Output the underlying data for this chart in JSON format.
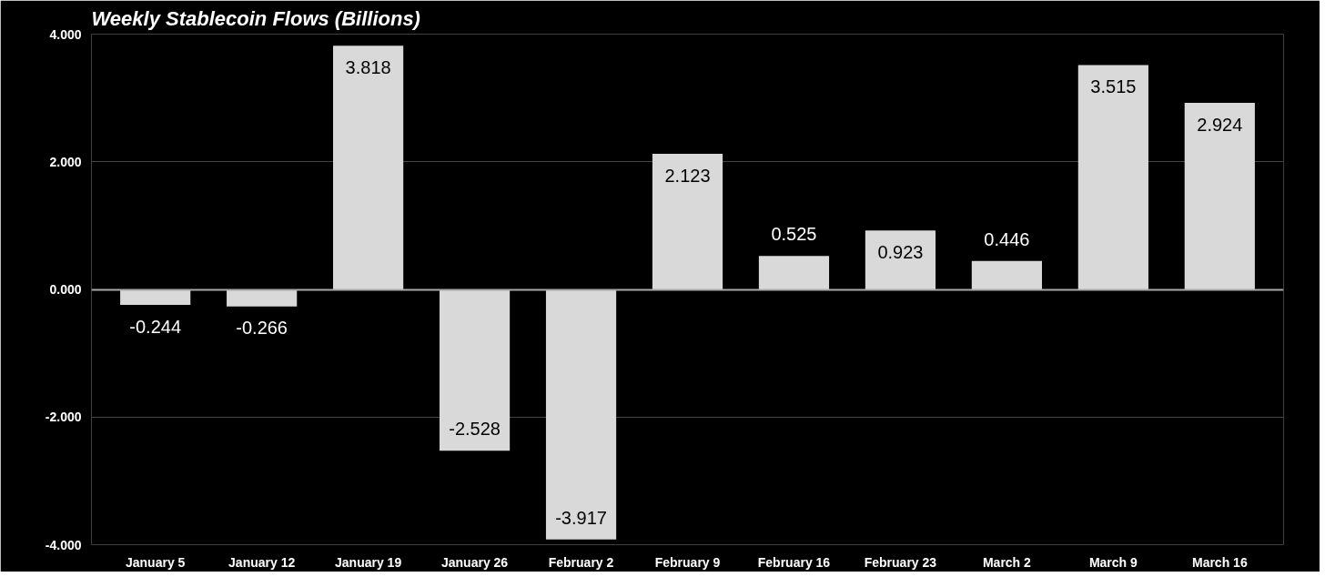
{
  "chart_data": {
    "type": "bar",
    "title": "Weekly Stablecoin Flows (Billions)",
    "categories": [
      "January 5",
      "January 12",
      "January 19",
      "January 26",
      "February 2",
      "February 9",
      "February 16",
      "February 23",
      "March 2",
      "March 9",
      "March 16"
    ],
    "values": [
      -0.244,
      -0.266,
      3.818,
      -2.528,
      -3.917,
      2.123,
      0.525,
      0.923,
      0.446,
      3.515,
      2.924
    ],
    "color": "#d9d9d9",
    "ylim": [
      -4,
      4
    ],
    "yticks": [
      {
        "value": -4,
        "label": "-4.000"
      },
      {
        "value": -2,
        "label": "-2.000"
      },
      {
        "value": 0,
        "label": "0.000"
      },
      {
        "value": 2,
        "label": "2.000"
      },
      {
        "value": 4,
        "label": "4.000"
      }
    ],
    "grid": "y",
    "data_labels": true
  }
}
